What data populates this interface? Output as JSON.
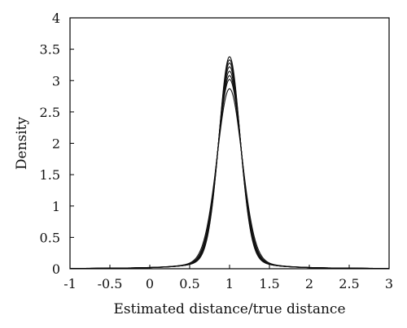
{
  "chart_data": {
    "type": "line",
    "title": "",
    "xlabel": "Estimated distance/true distance",
    "ylabel": "Density",
    "xlim": [
      -1,
      3
    ],
    "ylim": [
      0,
      4
    ],
    "xticks": [
      -1,
      -0.5,
      0,
      0.5,
      1,
      1.5,
      2,
      2.5,
      3
    ],
    "xtick_labels": [
      "-1",
      "-0.5",
      "0",
      "0.5",
      "1",
      "1.5",
      "2",
      "2.5",
      "3"
    ],
    "yticks": [
      0,
      0.5,
      1,
      1.5,
      2,
      2.5,
      3,
      3.5,
      4
    ],
    "ytick_labels": [
      "0",
      "0.5",
      "1",
      "1.5",
      "2",
      "2.5",
      "3",
      "3.5",
      "4"
    ],
    "grid": false,
    "legend": "none",
    "line_color": "#111111",
    "peak_location": 1.0,
    "series": [
      {
        "peak": 3.38
      },
      {
        "peak": 3.33
      },
      {
        "peak": 3.28
      },
      {
        "peak": 3.22
      },
      {
        "peak": 3.15
      },
      {
        "peak": 3.08
      },
      {
        "peak": 3.02
      },
      {
        "peak": 2.87
      }
    ]
  }
}
